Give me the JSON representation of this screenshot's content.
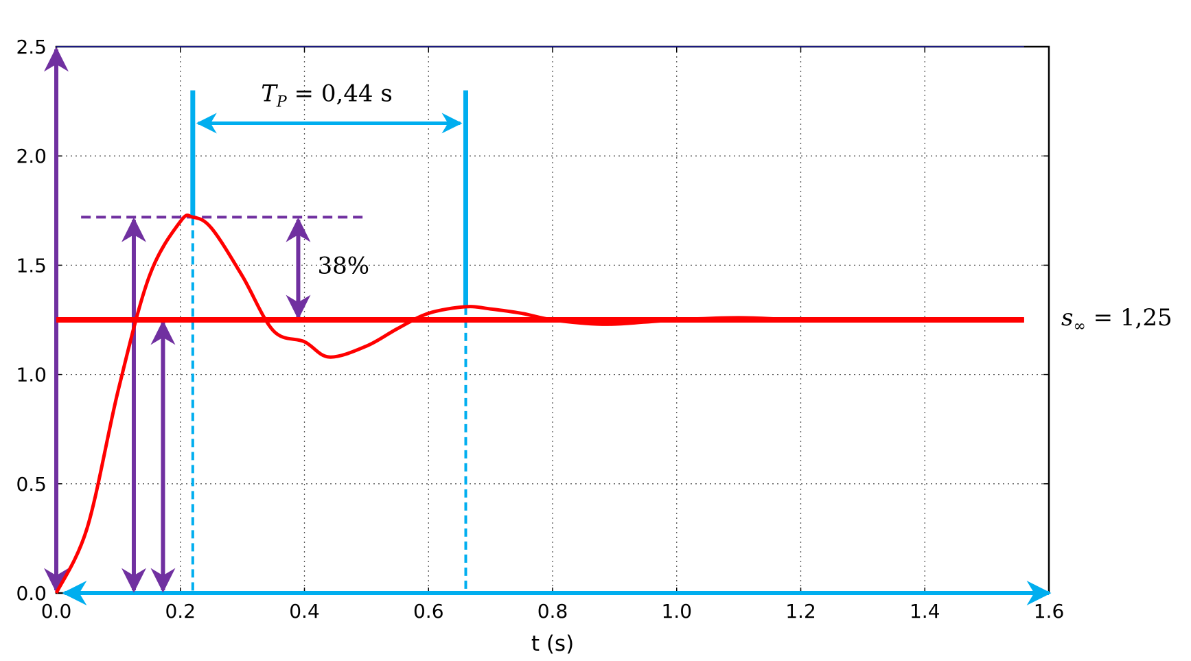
{
  "chart_data": {
    "type": "line",
    "title": "",
    "xlabel": "t (s)",
    "ylabel": "",
    "xlim": [
      0.0,
      1.6
    ],
    "ylim": [
      0.0,
      2.5
    ],
    "x_ticks": [
      "0.0",
      "0.2",
      "0.4",
      "0.6",
      "0.8",
      "1.0",
      "1.2",
      "1.4",
      "1.6"
    ],
    "y_ticks": [
      "0.0",
      "0.5",
      "1.0",
      "1.5",
      "2.0",
      "2.5"
    ],
    "grid": true,
    "legend": "none",
    "series": [
      {
        "role": "step response",
        "color": "#ff0000",
        "x": [
          0.0,
          0.05,
          0.1,
          0.15,
          0.2,
          0.22,
          0.25,
          0.3,
          0.35,
          0.4,
          0.44,
          0.5,
          0.55,
          0.6,
          0.66,
          0.7,
          0.75,
          0.8,
          0.88,
          0.95,
          1.0,
          1.1,
          1.2,
          1.3,
          1.4,
          1.5,
          1.56
        ],
        "y": [
          0.0,
          0.3,
          0.93,
          1.45,
          1.7,
          1.72,
          1.67,
          1.45,
          1.2,
          1.15,
          1.08,
          1.13,
          1.21,
          1.28,
          1.31,
          1.3,
          1.28,
          1.25,
          1.23,
          1.24,
          1.25,
          1.26,
          1.25,
          1.25,
          1.25,
          1.25,
          1.25
        ]
      }
    ],
    "steady_state": {
      "value": 1.25,
      "color": "#ff0000",
      "label_var": "s",
      "label_sub": "∞",
      "label_rest": " = 1,25"
    },
    "peak_time": {
      "label_var": "T",
      "label_sub": "P",
      "label_rest": " = 0,44 s",
      "t1": 0.22,
      "t2": 0.66,
      "peak1": 1.72,
      "peak2": 1.31,
      "color": "#00aeef"
    },
    "overshoot": {
      "label": "38%",
      "peak_level": 1.72,
      "color": "#7030a0"
    },
    "annotation_arrows": [
      {
        "x": 0.0,
        "y_from": 0.0,
        "y_to": 2.5,
        "color": "#7030a0"
      },
      {
        "x": 0.125,
        "y_from": 0.0,
        "y_to": 1.72,
        "color": "#7030a0"
      },
      {
        "x": 0.172,
        "y_from": 0.0,
        "y_to": 1.25,
        "color": "#7030a0"
      }
    ]
  }
}
